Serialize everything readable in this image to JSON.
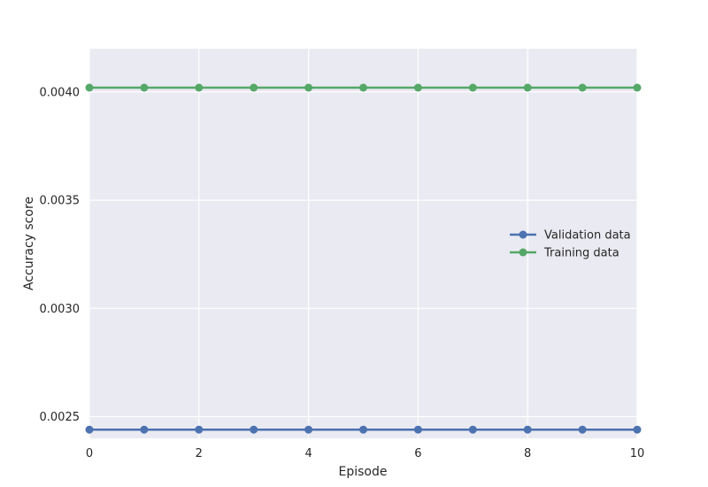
{
  "chart_data": {
    "type": "line",
    "title": "",
    "xlabel": "Episode",
    "ylabel": "Accuracy score",
    "xlim": [
      0,
      10
    ],
    "ylim": [
      0.0024,
      0.0042
    ],
    "x_ticks": [
      "0",
      "2",
      "4",
      "6",
      "8",
      "10"
    ],
    "y_ticks": [
      "0.0025",
      "0.0030",
      "0.0035",
      "0.0040"
    ],
    "grid": true,
    "legend_position": "center-right",
    "background": "#EAEAF2",
    "x": [
      0,
      1,
      2,
      3,
      4,
      5,
      6,
      7,
      8,
      9,
      10
    ],
    "series": [
      {
        "name": "Validation data",
        "color": "#4C72B0",
        "marker": "circle",
        "values": [
          0.00244,
          0.00244,
          0.00244,
          0.00244,
          0.00244,
          0.00244,
          0.00244,
          0.00244,
          0.00244,
          0.00244,
          0.00244
        ]
      },
      {
        "name": "Training data",
        "color": "#55A868",
        "marker": "circle",
        "values": [
          0.00402,
          0.00402,
          0.00402,
          0.00402,
          0.00402,
          0.00402,
          0.00402,
          0.00402,
          0.00402,
          0.00402,
          0.00402
        ]
      }
    ]
  }
}
